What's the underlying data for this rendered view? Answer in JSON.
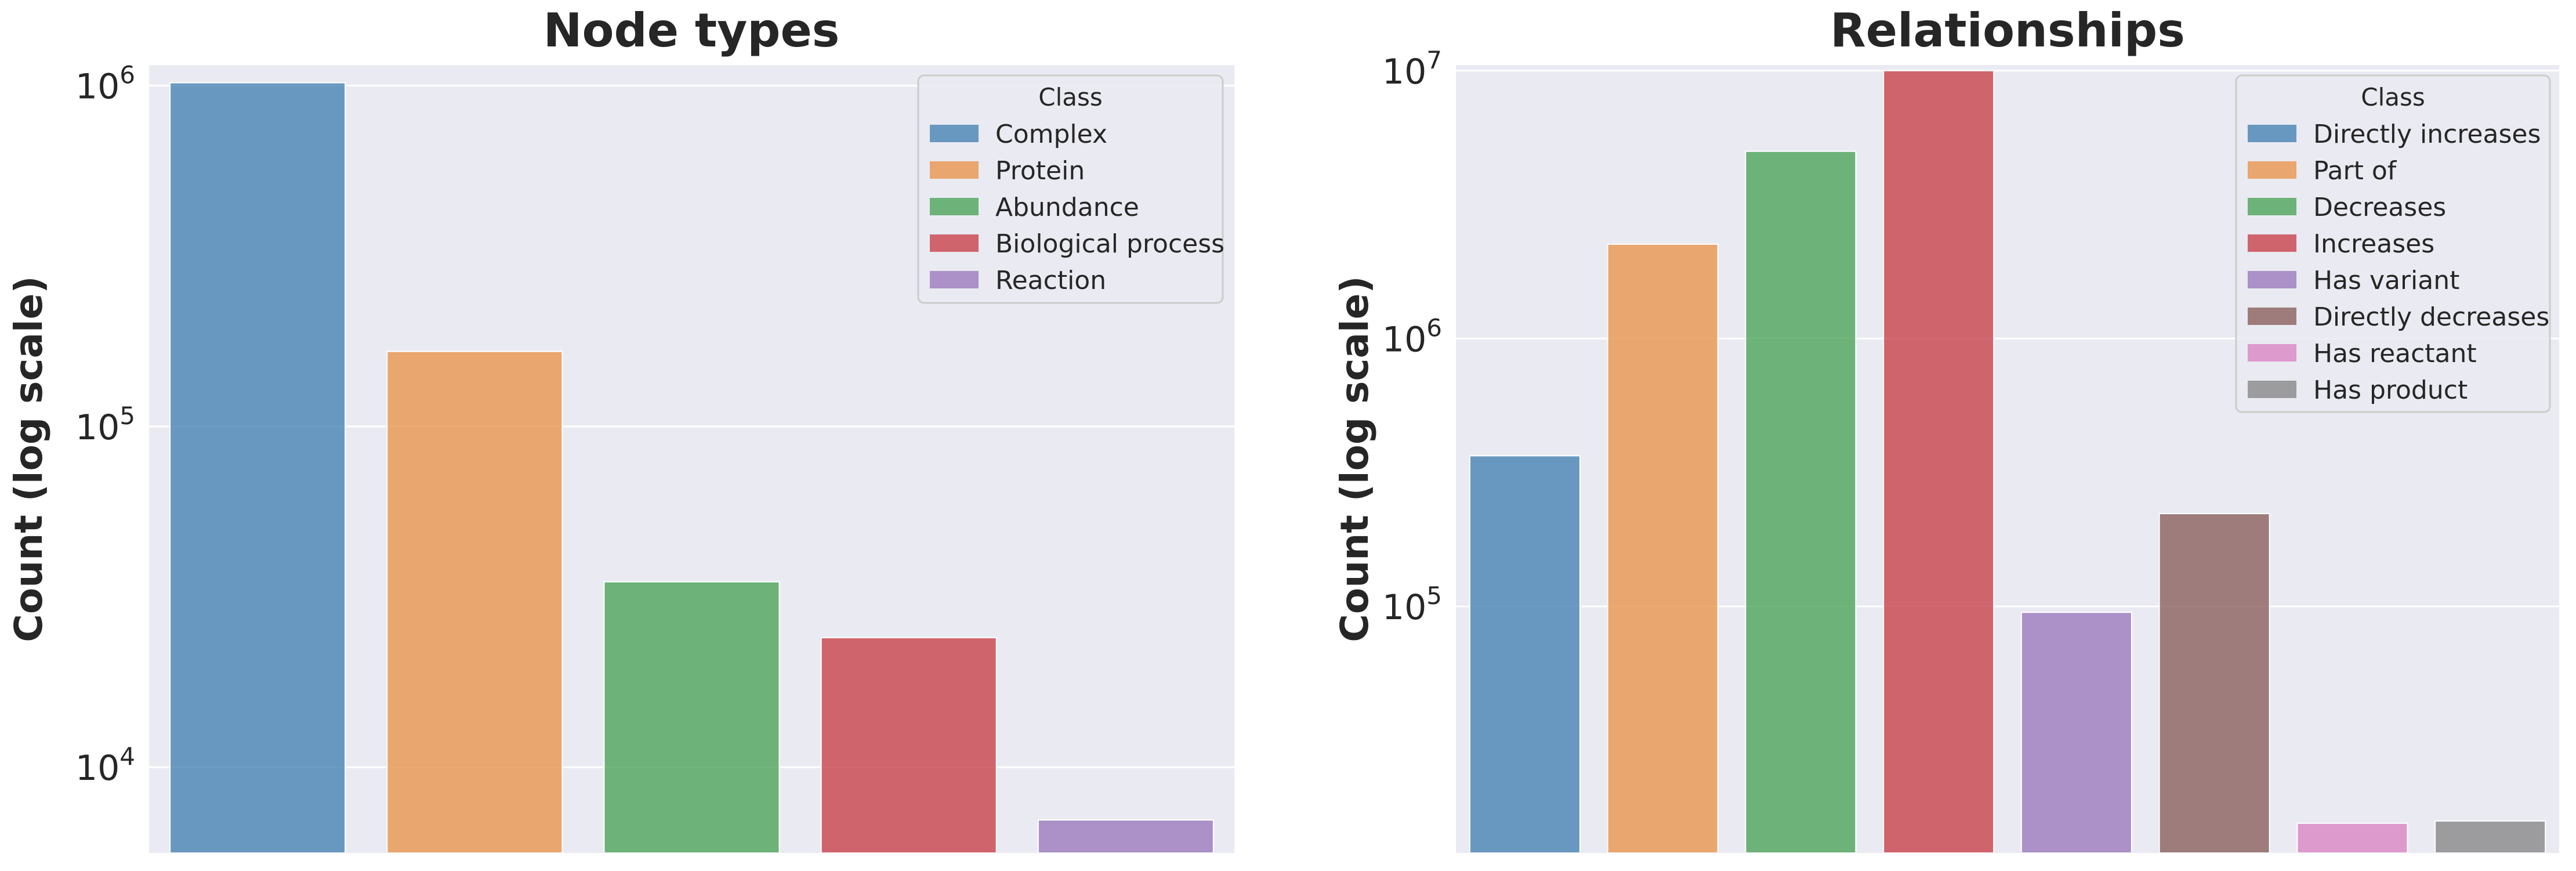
{
  "chart_data": [
    {
      "type": "bar",
      "title": "Node types",
      "xlabel": "",
      "ylabel": "Count (log scale)",
      "yscale": "log",
      "ylim": [
        5600,
        1150000
      ],
      "yticks": [
        {
          "value": 10000,
          "base": "10",
          "exp": "4"
        },
        {
          "value": 100000,
          "base": "10",
          "exp": "5"
        },
        {
          "value": 1000000,
          "base": "10",
          "exp": "6"
        }
      ],
      "grid": true,
      "categories": [
        "Complex",
        "Protein",
        "Abundance",
        "Biological process",
        "Reaction"
      ],
      "values": [
        1020000,
        166000,
        35000,
        24000,
        7000
      ],
      "colors": [
        "#4C86B4",
        "#E99751",
        "#52A65D",
        "#C9474F",
        "#9D7EBD"
      ],
      "legend": {
        "title": "Class",
        "placement": "top-right",
        "items": [
          "Complex",
          "Protein",
          "Abundance",
          "Biological process",
          "Reaction"
        ]
      }
    },
    {
      "type": "bar",
      "title": "Relationships",
      "xlabel": "",
      "ylabel": "Count (log scale)",
      "yscale": "log",
      "ylim": [
        12000,
        10500000
      ],
      "yticks": [
        {
          "value": 100000,
          "base": "10",
          "exp": "5"
        },
        {
          "value": 1000000,
          "base": "10",
          "exp": "6"
        },
        {
          "value": 10000000,
          "base": "10",
          "exp": "7"
        }
      ],
      "grid": true,
      "categories": [
        "Directly increases",
        "Part of",
        "Decreases",
        "Increases",
        "Has variant",
        "Directly decreases",
        "Has reactant",
        "Has product"
      ],
      "values": [
        365000,
        2250000,
        5000000,
        10000000,
        95000,
        222000,
        15500,
        15800
      ],
      "colors": [
        "#4C86B4",
        "#E99751",
        "#52A65D",
        "#C9474F",
        "#9D7EBD",
        "#8E6462",
        "#DB89C4",
        "#8B8B8B"
      ],
      "legend": {
        "title": "Class",
        "placement": "top-right",
        "items": [
          "Directly increases",
          "Part of",
          "Decreases",
          "Increases",
          "Has variant",
          "Directly decreases",
          "Has reactant",
          "Has product"
        ]
      }
    }
  ]
}
